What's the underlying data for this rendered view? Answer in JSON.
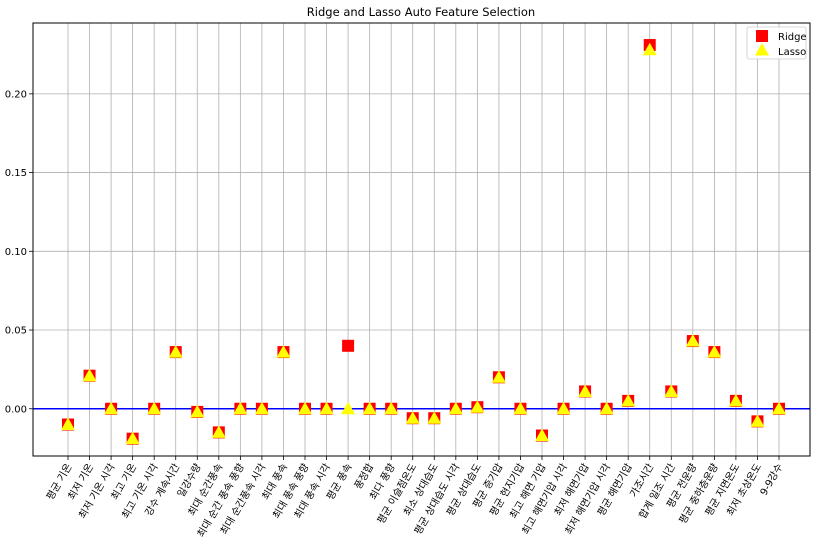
{
  "chart_data": {
    "type": "scatter",
    "title": "Ridge and Lasso Auto Feature Selection",
    "xlabel": "",
    "ylabel": "",
    "ylim": [
      -0.03,
      0.245
    ],
    "yticks": [
      0.0,
      0.05,
      0.1,
      0.15,
      0.2
    ],
    "ytick_labels": [
      "0.00",
      "0.05",
      "0.10",
      "0.15",
      "0.20"
    ],
    "grid": true,
    "legend_position": "top-right",
    "reference_line": {
      "y": 0.0,
      "color": "#0000ff"
    },
    "categories": [
      "평균 기온",
      "최저 기온",
      "최저 기온 시각",
      "최고 기온",
      "최고 기온 시각",
      "강수 계속시간",
      "일강수량",
      "최대 순간풍속",
      "최대 순간 풍속 풍향",
      "최대 순간풍속 시각",
      "최대 풍속",
      "최대 풍속 풍향",
      "최대 풍속 시각",
      "평균 풍속",
      "풍정합",
      "최다 풍향",
      "평균 이슬점온도",
      "최소 상대습도",
      "평균 상대습도 시각",
      "평균 상대습도",
      "평균 증기압",
      "평균 현지기압",
      "최고 해면 기압",
      "최고 해면기압 시각",
      "최저 해면기압",
      "최저 해면기압 시각",
      "평균 해면기압",
      "가조시간",
      "합계 일조 시간",
      "평균 전운량",
      "평균 중하층운량",
      "평균 지면온도",
      "최저 초상온도",
      "9-9강수"
    ],
    "series": [
      {
        "name": "Ridge",
        "marker": "square",
        "color": "#ff0000",
        "values": [
          -0.01,
          0.021,
          0.0,
          -0.019,
          0.0,
          0.036,
          -0.002,
          -0.015,
          0.0,
          0.0,
          0.036,
          0.0,
          0.0,
          0.04,
          0.0,
          0.0,
          -0.006,
          -0.006,
          0.0,
          0.001,
          0.02,
          0.0,
          -0.017,
          0.0,
          0.011,
          0.0,
          0.005,
          0.231,
          0.011,
          0.043,
          0.036,
          0.005,
          -0.008,
          0.0
        ]
      },
      {
        "name": "Lasso",
        "marker": "triangle",
        "color": "#ffff00",
        "values": [
          -0.01,
          0.021,
          0.0,
          -0.019,
          0.0,
          0.036,
          -0.002,
          -0.015,
          0.0,
          0.0,
          0.036,
          0.0,
          0.0,
          0.0,
          0.0,
          0.0,
          -0.006,
          -0.006,
          0.0,
          0.001,
          0.02,
          0.0,
          -0.017,
          0.0,
          0.011,
          0.0,
          0.005,
          0.228,
          0.011,
          0.043,
          0.036,
          0.005,
          -0.008,
          0.0
        ]
      }
    ]
  }
}
